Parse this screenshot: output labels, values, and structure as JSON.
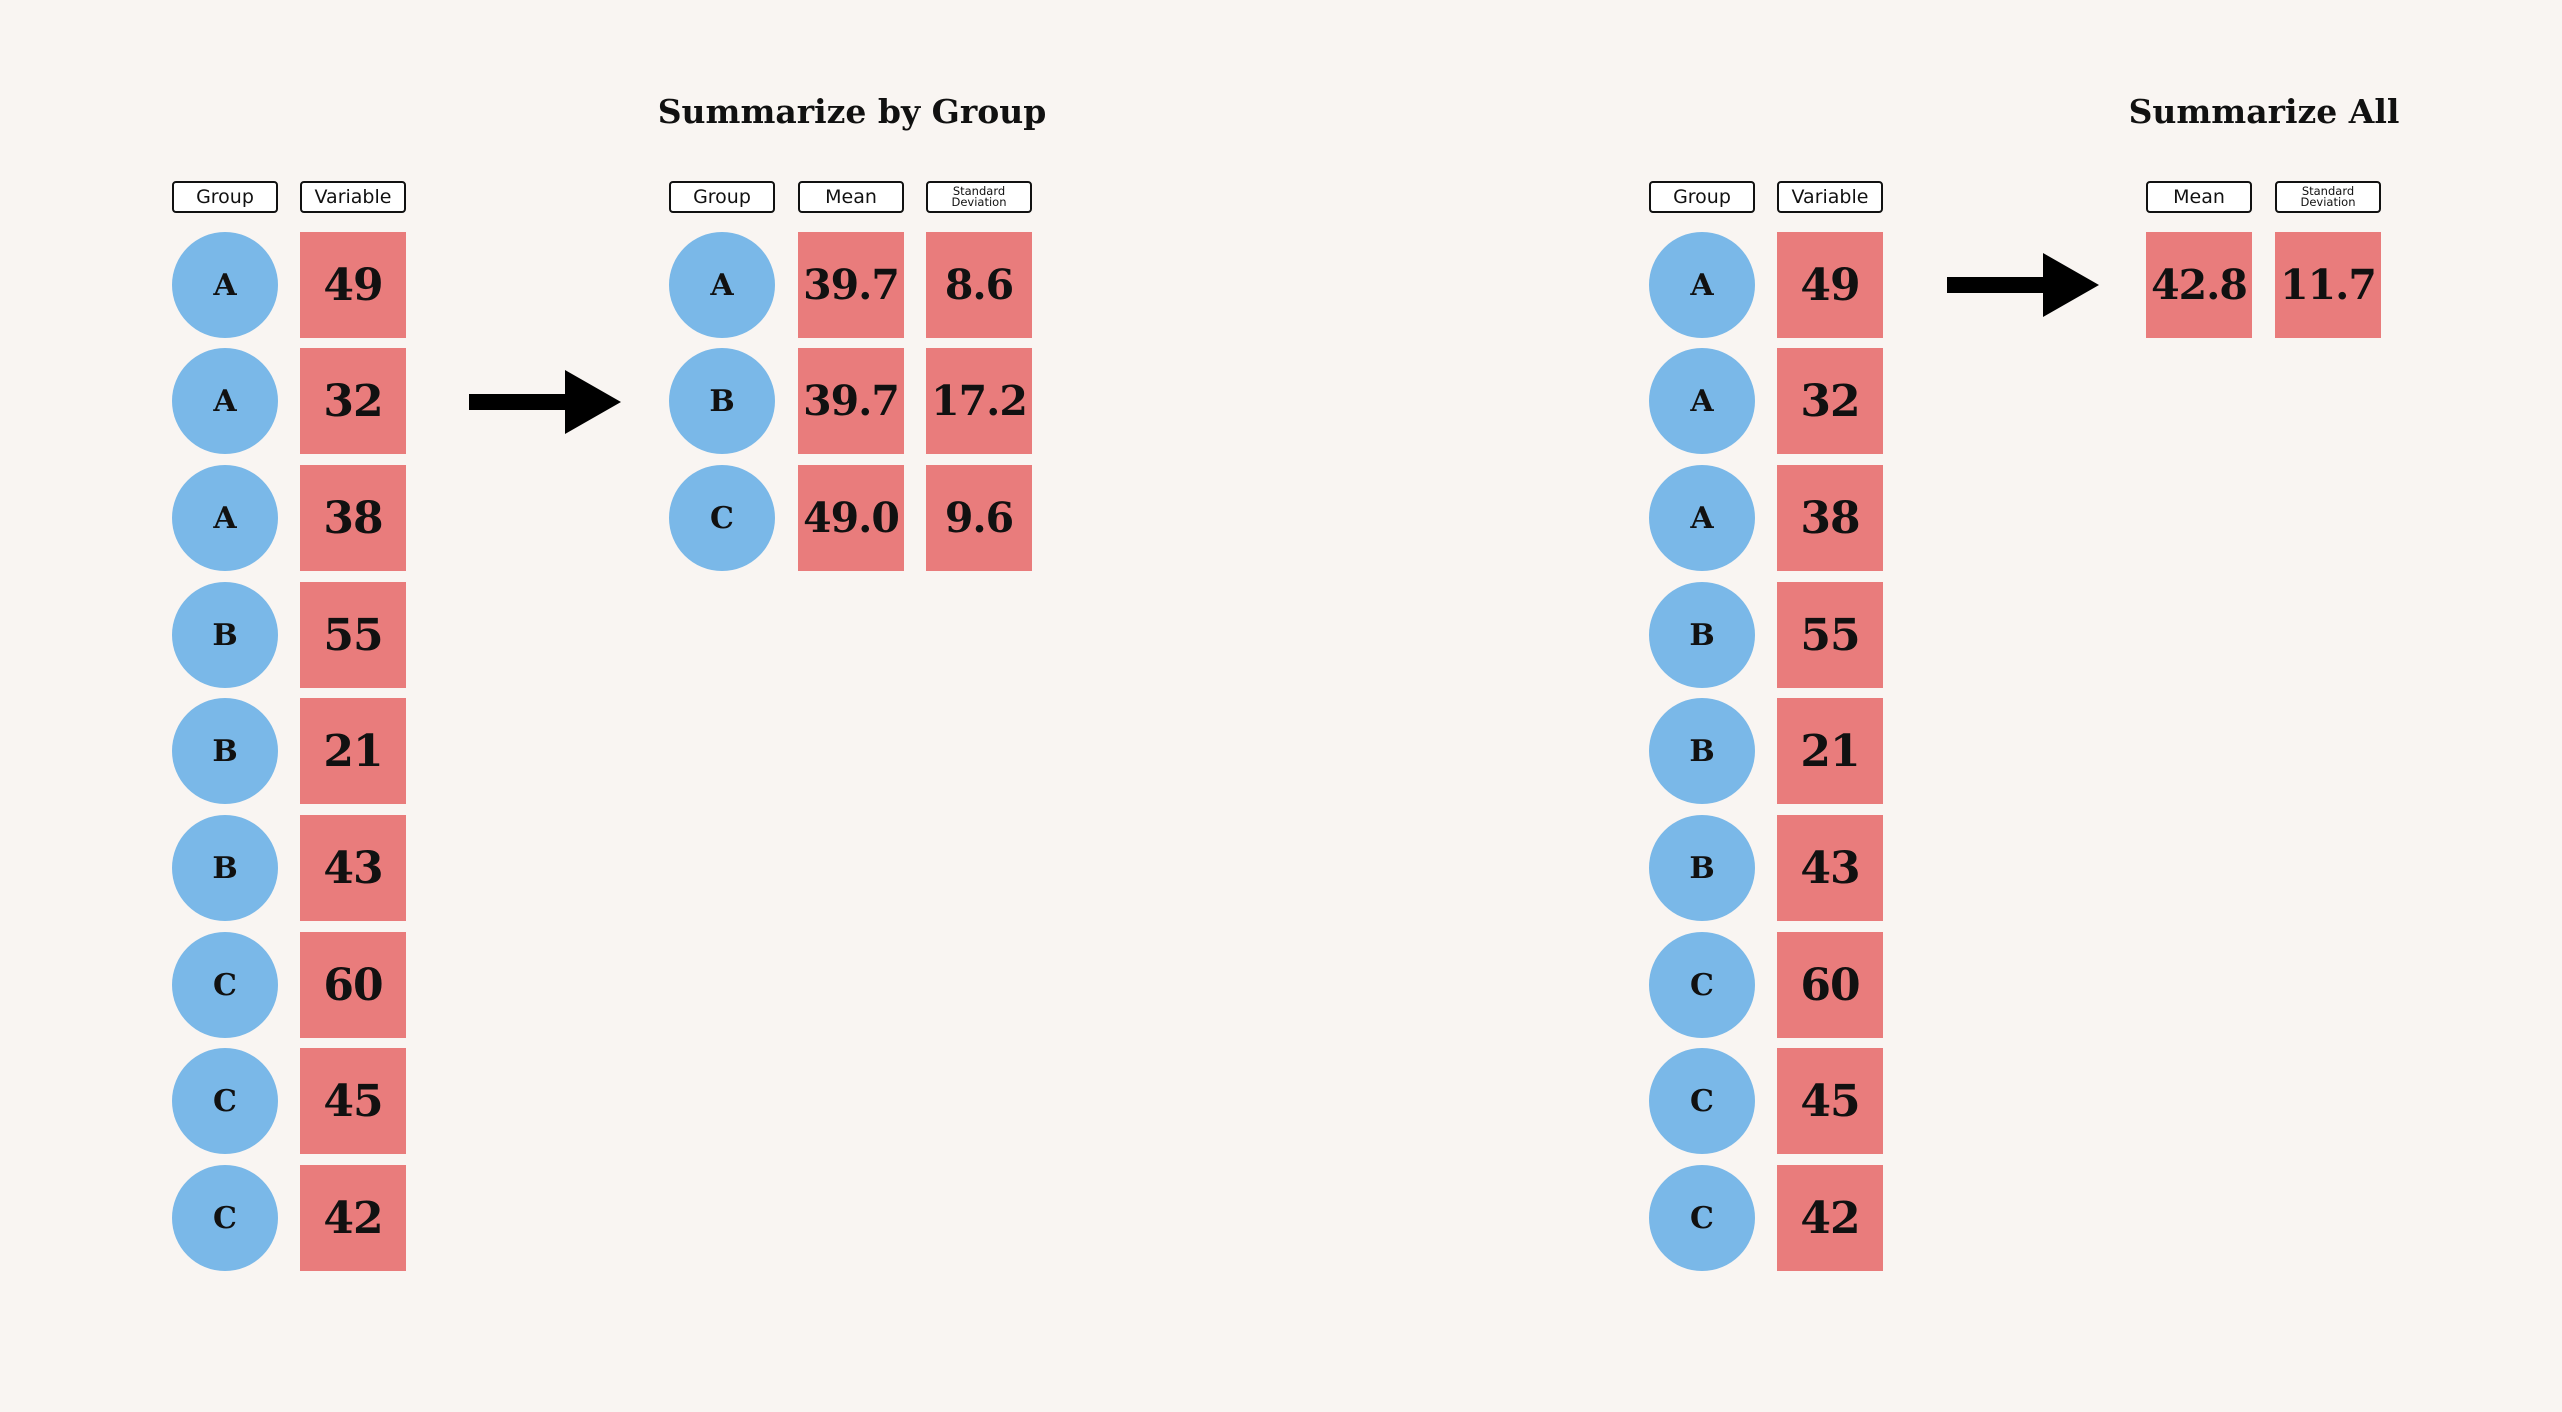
{
  "by_group": {
    "title": "Summarize by Group",
    "input": {
      "group_header": "Group",
      "variable_header": "Variable",
      "rows": [
        {
          "group": "A",
          "value": "49"
        },
        {
          "group": "A",
          "value": "32"
        },
        {
          "group": "A",
          "value": "38"
        },
        {
          "group": "B",
          "value": "55"
        },
        {
          "group": "B",
          "value": "21"
        },
        {
          "group": "B",
          "value": "43"
        },
        {
          "group": "C",
          "value": "60"
        },
        {
          "group": "C",
          "value": "45"
        },
        {
          "group": "C",
          "value": "42"
        }
      ]
    },
    "output": {
      "group_header": "Group",
      "mean_header": "Mean",
      "sd_header_line1": "Standard",
      "sd_header_line2": "Deviation",
      "rows": [
        {
          "group": "A",
          "mean": "39.7",
          "sd": "8.6"
        },
        {
          "group": "B",
          "mean": "39.7",
          "sd": "17.2"
        },
        {
          "group": "C",
          "mean": "49.0",
          "sd": "9.6"
        }
      ]
    }
  },
  "all": {
    "title": "Summarize All",
    "input": {
      "group_header": "Group",
      "variable_header": "Variable",
      "rows": [
        {
          "group": "A",
          "value": "49"
        },
        {
          "group": "A",
          "value": "32"
        },
        {
          "group": "A",
          "value": "38"
        },
        {
          "group": "B",
          "value": "55"
        },
        {
          "group": "B",
          "value": "21"
        },
        {
          "group": "B",
          "value": "43"
        },
        {
          "group": "C",
          "value": "60"
        },
        {
          "group": "C",
          "value": "45"
        },
        {
          "group": "C",
          "value": "42"
        }
      ]
    },
    "output": {
      "mean_header": "Mean",
      "sd_header_line1": "Standard",
      "sd_header_line2": "Deviation",
      "mean": "42.8",
      "sd": "11.7"
    }
  },
  "colors": {
    "background": "#f9f5f2",
    "group_circle": "#7ab8e8",
    "value_square": "#e97c7c",
    "arrow": "#000000"
  }
}
